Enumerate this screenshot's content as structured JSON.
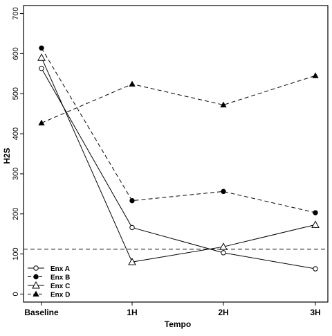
{
  "chart_data": {
    "type": "line",
    "xlabel": "Tempo",
    "ylabel": "H2S",
    "categories": [
      "Baseline",
      "1H",
      "2H",
      "3H"
    ],
    "ylim": [
      -20,
      720
    ],
    "yticks": [
      0,
      100,
      200,
      300,
      400,
      500,
      600,
      700
    ],
    "grid": false,
    "legend_position": "bottom-left",
    "reference_line": {
      "y": 112,
      "style": "dashed"
    },
    "series": [
      {
        "name": "Enx A",
        "values": [
          563,
          166,
          103,
          63
        ],
        "marker": "open-circle",
        "line": "solid"
      },
      {
        "name": "Enx B",
        "values": [
          614,
          233,
          256,
          203
        ],
        "marker": "filled-circle",
        "line": "dashed"
      },
      {
        "name": "Enx C",
        "values": [
          590,
          80,
          118,
          173
        ],
        "marker": "open-triangle",
        "line": "solid"
      },
      {
        "name": "Enx D",
        "values": [
          427,
          524,
          472,
          545
        ],
        "marker": "filled-triangle",
        "line": "dashed"
      }
    ]
  }
}
